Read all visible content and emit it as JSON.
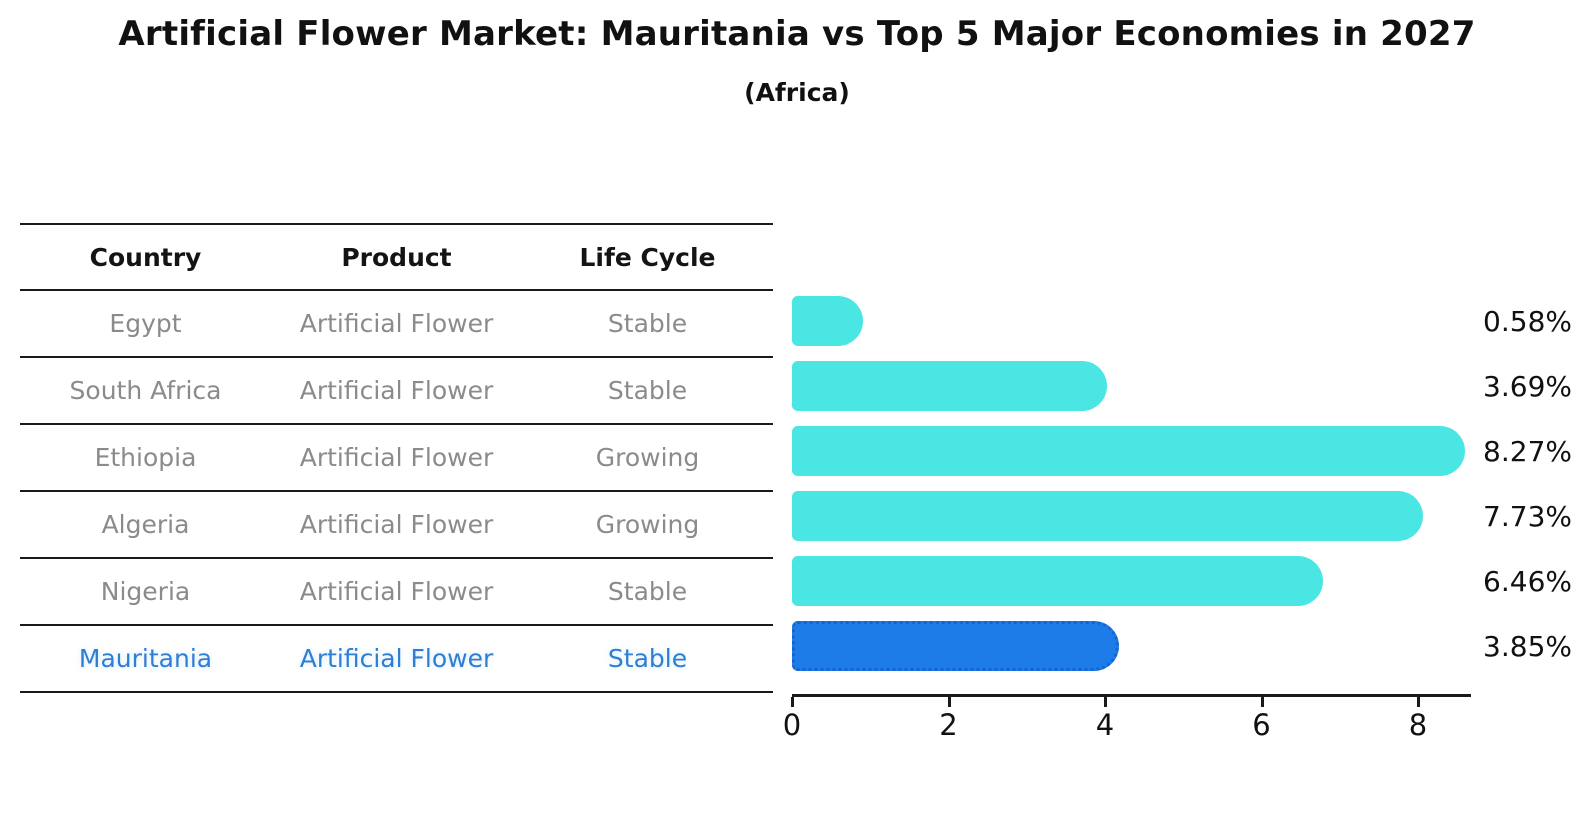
{
  "title": "Artificial Flower Market: Mauritania vs Top 5 Major Economies in 2027",
  "subtitle": "(Africa)",
  "table": {
    "headers": [
      "Country",
      "Product",
      "Life Cycle"
    ],
    "rows": [
      {
        "country": "Egypt",
        "product": "Artificial Flower",
        "life_cycle": "Stable",
        "highlight": false
      },
      {
        "country": "South Africa",
        "product": "Artificial Flower",
        "life_cycle": "Stable",
        "highlight": false
      },
      {
        "country": "Ethiopia",
        "product": "Artificial Flower",
        "life_cycle": "Growing",
        "highlight": false
      },
      {
        "country": "Algeria",
        "product": "Artificial Flower",
        "life_cycle": "Growing",
        "highlight": false
      },
      {
        "country": "Nigeria",
        "product": "Artificial Flower",
        "life_cycle": "Stable",
        "highlight": false
      },
      {
        "country": "Mauritania",
        "product": "Artificial Flower",
        "life_cycle": "Stable",
        "highlight": true
      }
    ]
  },
  "chart_data": {
    "type": "bar",
    "orientation": "horizontal",
    "title": "Artificial Flower Market: Mauritania vs Top 5 Major Economies in 2027 (Africa)",
    "categories": [
      "Egypt",
      "South Africa",
      "Ethiopia",
      "Algeria",
      "Nigeria",
      "Mauritania"
    ],
    "values": [
      0.58,
      3.69,
      8.27,
      7.73,
      6.46,
      3.85
    ],
    "value_labels": [
      "0.58%",
      "3.69%",
      "8.27%",
      "7.73%",
      "6.46%",
      "3.85%"
    ],
    "x_ticks": [
      "0",
      "2",
      "4",
      "6",
      "8"
    ],
    "x_tick_values": [
      0,
      2,
      4,
      6,
      8
    ],
    "xlim": [
      0,
      8.67
    ],
    "highlight_index": 5,
    "bar_color": "#4AE6E4",
    "highlight_bar_color": "#1D7CE8",
    "highlight_text_color": "#2e7ed2",
    "grid": false,
    "legend": false
  }
}
